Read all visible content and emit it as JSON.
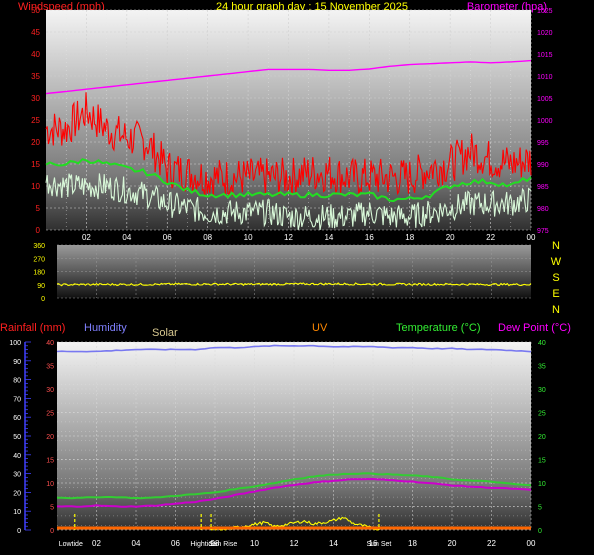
{
  "title": "24 hour graph day : 15 November 2025",
  "colors": {
    "wind": "#ff0000",
    "gust": "#ff0000",
    "wind_avg": "#22dd22",
    "wind_low": "#d8f8d8",
    "barometer": "#ff00ff",
    "direction": "#ffff00",
    "humidity": "#7878f0",
    "temperature": "#33cc33",
    "dewpoint": "#cc00cc",
    "solar": "#ffff00",
    "uv": "#ff6600",
    "rain": "#4040ff",
    "label_rain": "#ff2020",
    "label_humidity": "#8080ff",
    "label_solar": "#d8c890",
    "label_uv": "#ff8800",
    "label_temp": "#33ee33",
    "label_dew": "#ff00ff",
    "label_baro": "#ff00ff",
    "label_title": "#ffff00"
  },
  "chart_data": [
    {
      "type": "line",
      "name": "wind-barometer",
      "labels": {
        "left": "Windspeed (mph)",
        "right": "Barometer (hpa)"
      },
      "x_ticks": [
        "02",
        "04",
        "06",
        "08",
        "10",
        "12",
        "14",
        "16",
        "18",
        "20",
        "22",
        "00"
      ],
      "y_left_ticks": [
        0,
        5,
        10,
        15,
        20,
        25,
        30,
        35,
        40,
        45,
        50
      ],
      "y_right_ticks": [
        975,
        980,
        985,
        990,
        995,
        1000,
        1005,
        1010,
        1015,
        1020,
        1025
      ],
      "y_left_range": [
        0,
        50
      ],
      "y_right_range": [
        975,
        1025
      ],
      "x_range_hours": [
        0,
        24
      ],
      "series": [
        {
          "id": "barometer",
          "axis": "right",
          "x": [
            0,
            1,
            2,
            3,
            4,
            5,
            6,
            7,
            8,
            9,
            10,
            11,
            12,
            13,
            14,
            15,
            16,
            17,
            18,
            19,
            20,
            21,
            22,
            23,
            24
          ],
          "values": [
            1006,
            1006.5,
            1007,
            1007.5,
            1008,
            1008.5,
            1009,
            1009.5,
            1010,
            1010.5,
            1011,
            1011.5,
            1011.5,
            1011.5,
            1011.3,
            1011.3,
            1011.6,
            1012.2,
            1012.6,
            1012.8,
            1013,
            1013.2,
            1013,
            1013.2,
            1013.5
          ]
        },
        {
          "id": "gust",
          "axis": "left",
          "x": [
            0,
            1,
            2,
            3,
            4,
            5,
            6,
            7,
            8,
            9,
            10,
            11,
            12,
            13,
            14,
            15,
            16,
            17,
            18,
            19,
            20,
            21,
            22,
            23,
            24
          ],
          "values": [
            23,
            23,
            27,
            23,
            21,
            20,
            14,
            13,
            12,
            12,
            12,
            12,
            12,
            13,
            13,
            12,
            12,
            12,
            12,
            14,
            15,
            18,
            16,
            15,
            16
          ]
        },
        {
          "id": "wind_avg",
          "axis": "left",
          "x": [
            0,
            1,
            2,
            3,
            4,
            5,
            6,
            7,
            8,
            9,
            10,
            11,
            12,
            13,
            14,
            15,
            16,
            17,
            18,
            19,
            20,
            21,
            22,
            23,
            24
          ],
          "values": [
            15,
            15,
            16,
            15,
            14,
            13,
            11,
            9,
            8,
            8,
            8,
            8,
            8,
            8,
            8,
            8,
            8,
            7,
            7,
            8,
            10,
            11,
            11,
            10,
            12
          ]
        },
        {
          "id": "wind_low",
          "axis": "left",
          "x": [
            0,
            1,
            2,
            3,
            4,
            5,
            6,
            7,
            8,
            9,
            10,
            11,
            12,
            13,
            14,
            15,
            16,
            17,
            18,
            19,
            20,
            21,
            22,
            23,
            24
          ],
          "values": [
            11,
            10,
            10,
            10,
            9,
            8,
            6,
            5,
            4,
            4,
            4,
            4,
            3,
            3,
            3,
            3,
            4,
            3,
            3,
            4,
            5,
            6,
            6,
            6,
            7
          ]
        }
      ]
    },
    {
      "type": "line",
      "name": "wind-direction",
      "labels": {
        "compass": [
          "N",
          "W",
          "S",
          "E",
          "N"
        ]
      },
      "y_ticks": [
        0,
        90,
        180,
        270,
        360
      ],
      "y_range": [
        0,
        360
      ],
      "series": [
        {
          "id": "direction",
          "x": [
            0,
            2,
            4,
            6,
            8,
            10,
            12,
            14,
            16,
            18,
            20,
            22,
            24
          ],
          "values": [
            90,
            92,
            92,
            94,
            94,
            93,
            95,
            96,
            94,
            93,
            93,
            92,
            92
          ]
        }
      ]
    },
    {
      "type": "line",
      "name": "temperature-humidity",
      "labels": {
        "rain": "Rainfall (mm)",
        "humidity": "Humidity",
        "solar": "Solar",
        "uv": "UV",
        "temperature": "Temperature (°C)",
        "dewpoint": "Dew Point (°C)"
      },
      "x_ticks": [
        "02",
        "04",
        "06",
        "08",
        "10",
        "12",
        "14",
        "16",
        "18",
        "20",
        "22",
        "00"
      ],
      "y_rain_ticks": [
        0,
        10,
        20,
        30,
        40,
        50,
        60,
        70,
        80,
        90,
        100
      ],
      "y_hum_ticks": [
        0,
        5,
        10,
        15,
        20,
        25,
        30,
        35,
        40
      ],
      "y_temp_ticks": [
        0,
        5,
        10,
        15,
        20,
        25,
        30,
        35,
        40
      ],
      "y_temp_range": [
        0,
        40
      ],
      "events": [
        {
          "label": "Lowtide",
          "hour": 0.9
        },
        {
          "label": "Hightide",
          "hour": 7.3
        },
        {
          "label": "Sun Rise",
          "hour": 7.8
        },
        {
          "label": "Sun Set",
          "hour": 16.3
        }
      ],
      "series": [
        {
          "id": "humidity",
          "axis": "hum",
          "x": [
            0,
            1,
            2,
            3,
            4,
            5,
            6,
            7,
            8,
            9,
            10,
            11,
            12,
            13,
            14,
            15,
            16,
            17,
            18,
            19,
            20,
            21,
            22,
            23,
            24
          ],
          "values": [
            95,
            95,
            95,
            95.5,
            96,
            96,
            96,
            96,
            97,
            97,
            97.5,
            98,
            98,
            98,
            97.5,
            97.5,
            97.5,
            97,
            97,
            96.5,
            96.5,
            96,
            96,
            95.5,
            95
          ]
        },
        {
          "id": "temperature",
          "axis": "temp",
          "x": [
            0,
            1,
            2,
            3,
            4,
            5,
            6,
            7,
            8,
            9,
            10,
            11,
            12,
            13,
            14,
            15,
            16,
            17,
            18,
            19,
            20,
            21,
            22,
            23,
            24
          ],
          "values": [
            6.9,
            6.8,
            7,
            7,
            6.8,
            6.9,
            7.3,
            7.6,
            8,
            8.7,
            9.3,
            10,
            10.8,
            11.4,
            11.8,
            12,
            12,
            11.8,
            11.6,
            11.3,
            10.8,
            10.5,
            10.3,
            9.8,
            9.5
          ]
        },
        {
          "id": "dewpoint",
          "axis": "temp",
          "x": [
            0,
            1,
            2,
            3,
            4,
            5,
            6,
            7,
            8,
            9,
            10,
            11,
            12,
            13,
            14,
            15,
            16,
            17,
            18,
            19,
            20,
            21,
            22,
            23,
            24
          ],
          "values": [
            5,
            5,
            5.2,
            5,
            5,
            5.2,
            5.6,
            6,
            6.6,
            7.4,
            8.2,
            9,
            9.6,
            10.1,
            10.5,
            10.8,
            10.8,
            10.6,
            10.3,
            9.9,
            9.5,
            9.2,
            9,
            8.8,
            8.5
          ]
        },
        {
          "id": "solar",
          "axis": "temp",
          "x": [
            7.8,
            8.5,
            9,
            10,
            10.5,
            11,
            11.5,
            12,
            12.5,
            13,
            13.5,
            14,
            14.5,
            15,
            15.5,
            16,
            16.3
          ],
          "values": [
            0,
            0,
            0.5,
            1.2,
            1.6,
            0.7,
            1.1,
            1.5,
            1.9,
            1.3,
            1.6,
            2.0,
            2.7,
            1.4,
            0.9,
            0.3,
            0
          ]
        },
        {
          "id": "uv",
          "axis": "temp",
          "x": [
            0,
            24
          ],
          "values": [
            0,
            0
          ]
        }
      ]
    }
  ]
}
